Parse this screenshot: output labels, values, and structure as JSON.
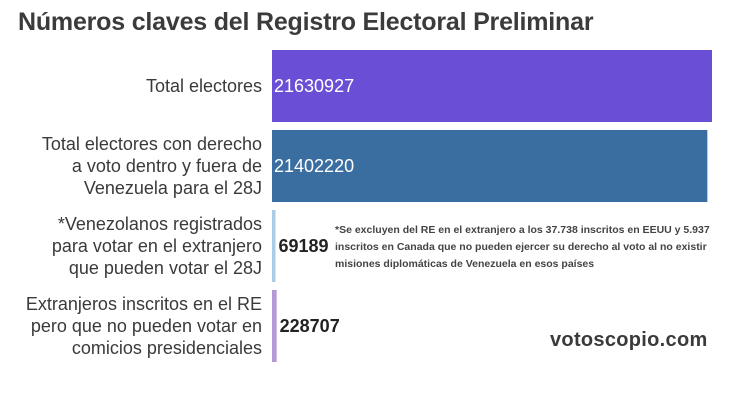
{
  "chart_data": {
    "type": "bar",
    "orientation": "horizontal",
    "title": "Números claves del Registro Electoral Preliminar",
    "categories": [
      "Total electores",
      "Total electores con derecho a voto dentro y fuera de Venezuela para el 28J",
      "*Venezolanos registrados para votar en el extranjero que pueden votar el 28J",
      "Extranjeros inscritos en el RE pero que no pueden votar en comicios presidenciales"
    ],
    "category_lines": [
      [
        "Total electores"
      ],
      [
        "Total electores con derecho",
        "a voto dentro y fuera de",
        "Venezuela para el 28J"
      ],
      [
        "*Venezolanos registrados",
        "para votar en el extranjero",
        "que pueden votar el 28J"
      ],
      [
        "Extranjeros inscritos en el RE",
        "pero que no pueden votar en",
        "comicios presidenciales"
      ]
    ],
    "values": [
      21630927,
      21402220,
      69189,
      228707
    ],
    "value_labels": [
      "21630927",
      "21402220",
      "69189",
      "228707"
    ],
    "bar_colors": [
      "#6a4fd6",
      "#3a6ea0",
      "#a9cce8",
      "#b39ad6"
    ],
    "xlim": [
      0,
      21630927
    ],
    "annotation": "*Se excluyen del RE en el extranjero a los 37.738 inscritos en EEUU y 5.937 inscritos en Canada que no pueden ejercer su derecho al voto al no existir misiones diplomáticas de Venezuela en esos países",
    "source_label": "votoscopio.com"
  }
}
